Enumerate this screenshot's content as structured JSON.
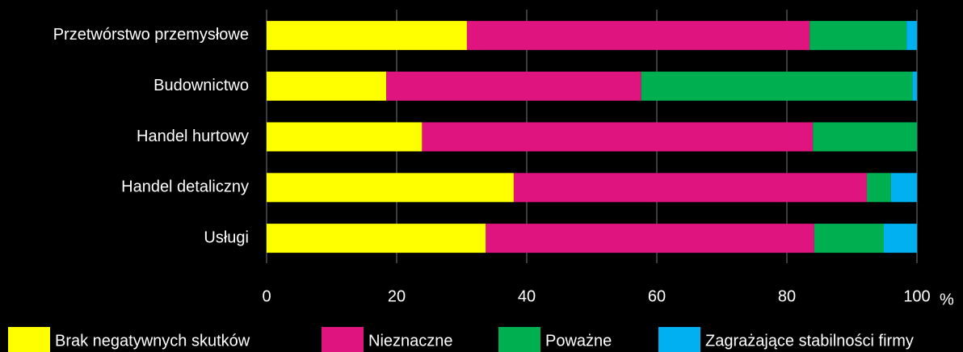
{
  "chart_data": {
    "type": "stacked_barh",
    "categories": [
      "Przetwórstwo przemysłowe",
      "Budownictwo",
      "Handel hurtowy",
      "Handel detaliczny",
      "Usługi"
    ],
    "series": [
      {
        "name": "Brak negatywnych skutków",
        "color": "#ffff00",
        "values": [
          30.8,
          18.4,
          23.9,
          38.0,
          33.7
        ]
      },
      {
        "name": "Nieznaczne",
        "color": "#e0147e",
        "values": [
          52.7,
          39.2,
          60.1,
          54.3,
          50.5
        ]
      },
      {
        "name": "Poważne",
        "color": "#00b050",
        "values": [
          14.9,
          41.7,
          16.0,
          3.7,
          10.7
        ]
      },
      {
        "name": "Zagrażające stabilności firmy",
        "color": "#00b0f0",
        "values": [
          1.6,
          0.7,
          0.0,
          4.0,
          5.1
        ]
      }
    ],
    "xlabel": "%",
    "xlim": [
      0,
      100
    ],
    "xticks": [
      0,
      20,
      40,
      60,
      80,
      100
    ],
    "grid": true
  }
}
